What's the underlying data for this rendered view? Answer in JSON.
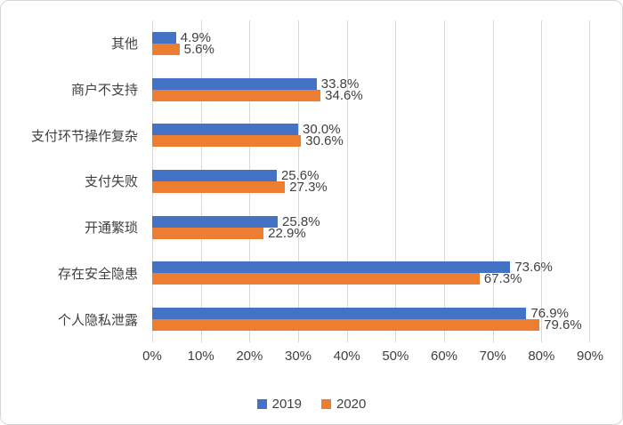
{
  "chart_data": {
    "type": "bar",
    "orientation": "horizontal",
    "title": "",
    "xlabel": "",
    "ylabel": "",
    "categories": [
      "其他",
      "商户不支持",
      "支付环节操作复杂",
      "支付失败",
      "开通繁琐",
      "存在安全隐患",
      "个人隐私泄露"
    ],
    "series": [
      {
        "name": "2019",
        "color": "#4472C4",
        "values": [
          4.9,
          33.8,
          30.0,
          25.6,
          25.8,
          73.6,
          76.9
        ]
      },
      {
        "name": "2020",
        "color": "#ED7D31",
        "values": [
          5.6,
          34.6,
          30.6,
          27.3,
          22.9,
          67.3,
          79.6
        ]
      }
    ],
    "data_labels": {
      "2019": [
        "4.9%",
        "33.8%",
        "30.0%",
        "25.6%",
        "25.8%",
        "73.6%",
        "76.9%"
      ],
      "2020": [
        "5.6%",
        "34.6%",
        "30.6%",
        "27.3%",
        "22.9%",
        "67.3%",
        "79.6%"
      ]
    },
    "value_suffix": "%",
    "xlim": [
      0,
      90
    ],
    "x_ticks": [
      "0%",
      "10%",
      "20%",
      "30%",
      "40%",
      "50%",
      "60%",
      "70%",
      "80%",
      "90%"
    ],
    "x_tick_values": [
      0,
      10,
      20,
      30,
      40,
      50,
      60,
      70,
      80,
      90
    ],
    "grid": true,
    "gridline_color": "#D9D9D9",
    "legend_position": "bottom",
    "legend": [
      "2019",
      "2020"
    ],
    "text_color": "#3F3F3F",
    "frame_border_color": "#D6D6D6",
    "background": "#FFFFFF"
  }
}
